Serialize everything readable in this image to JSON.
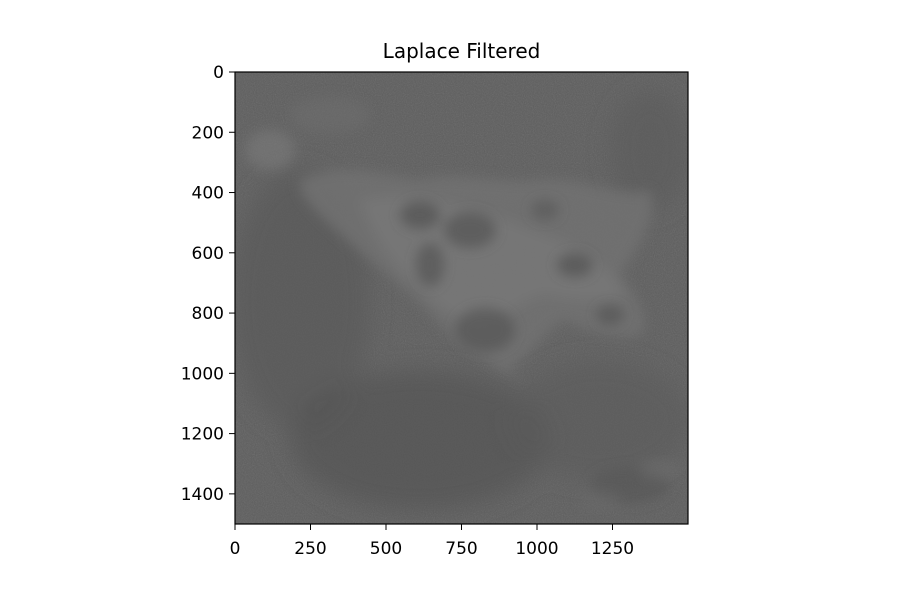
{
  "figure": {
    "title": "Laplace Filtered",
    "image_description_colors": {
      "base": "#5f5f5f",
      "dark": "#555555",
      "light": "#7a7a7a"
    },
    "x_axis": {
      "range": [
        0,
        1500
      ],
      "ticks": [
        {
          "value": 0,
          "label": "0"
        },
        {
          "value": 250,
          "label": "250"
        },
        {
          "value": 500,
          "label": "500"
        },
        {
          "value": 750,
          "label": "750"
        },
        {
          "value": 1000,
          "label": "1000"
        },
        {
          "value": 1250,
          "label": "1250"
        }
      ]
    },
    "y_axis": {
      "range": [
        0,
        1500
      ],
      "inverted": true,
      "ticks": [
        {
          "value": 0,
          "label": "0"
        },
        {
          "value": 200,
          "label": "200"
        },
        {
          "value": 400,
          "label": "400"
        },
        {
          "value": 600,
          "label": "600"
        },
        {
          "value": 800,
          "label": "800"
        },
        {
          "value": 1000,
          "label": "1000"
        },
        {
          "value": 1200,
          "label": "1200"
        },
        {
          "value": 1400,
          "label": "1400"
        }
      ]
    }
  }
}
